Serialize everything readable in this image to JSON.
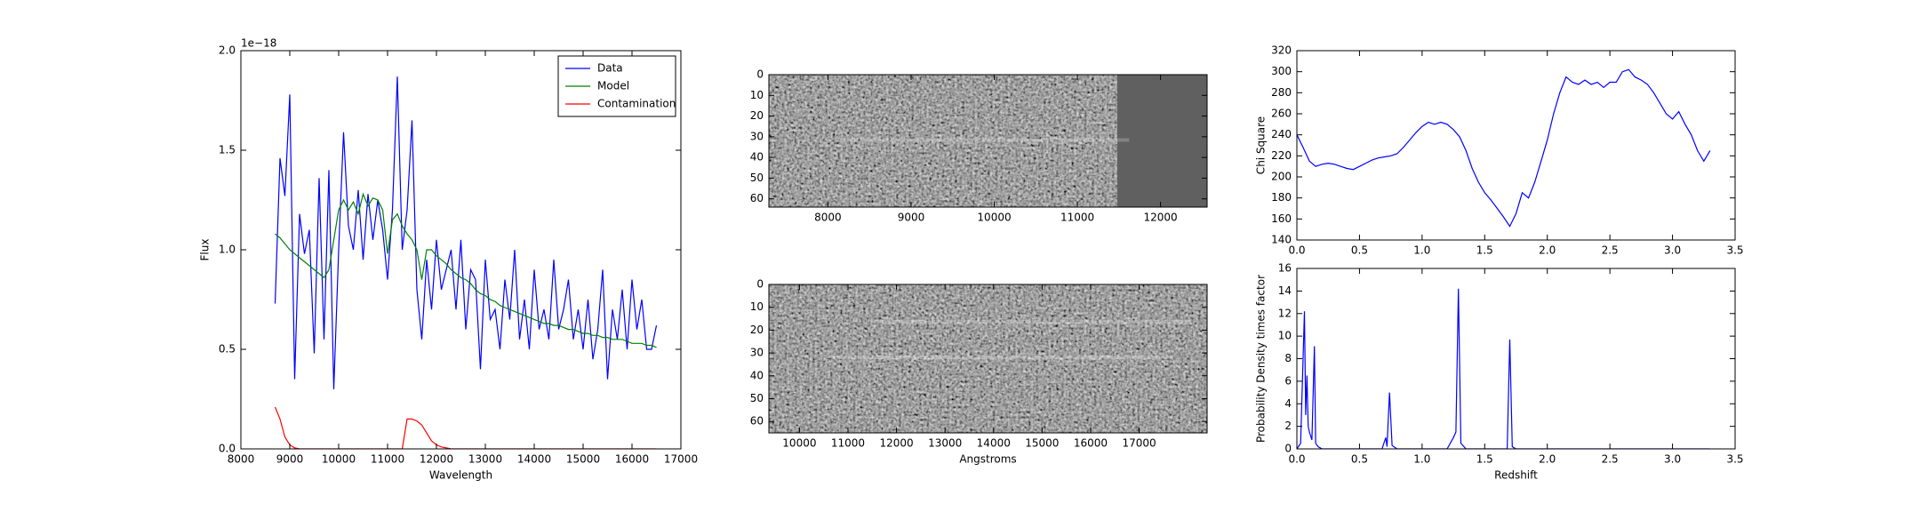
{
  "chart_data": [
    {
      "type": "line",
      "offset_label": "1e−18",
      "xlabel": "Wavelength",
      "ylabel": "Flux",
      "xlim": [
        8000,
        17000
      ],
      "ylim": [
        0,
        2.0
      ],
      "xticks": [
        8000,
        9000,
        10000,
        11000,
        12000,
        13000,
        14000,
        15000,
        16000,
        17000
      ],
      "yticks": [
        {
          "value": 0,
          "label": "0.0"
        },
        0.5,
        {
          "value": 1,
          "label": "1.0"
        },
        1.5,
        {
          "value": 2,
          "label": "2.0"
        }
      ],
      "legend": "upper right",
      "x": [
        8700,
        8800,
        8900,
        9000,
        9100,
        9200,
        9300,
        9400,
        9500,
        9600,
        9700,
        9800,
        9900,
        10000,
        10100,
        10200,
        10300,
        10400,
        10500,
        10600,
        10700,
        10800,
        10900,
        11000,
        11100,
        11200,
        11300,
        11400,
        11500,
        11600,
        11700,
        11800,
        11900,
        12000,
        12100,
        12200,
        12300,
        12400,
        12500,
        12600,
        12700,
        12800,
        12900,
        13000,
        13100,
        13200,
        13300,
        13400,
        13500,
        13600,
        13700,
        13800,
        13900,
        14000,
        14100,
        14200,
        14300,
        14400,
        14500,
        14600,
        14700,
        14800,
        14900,
        15000,
        15100,
        15200,
        15300,
        15400,
        15500,
        15600,
        15700,
        15800,
        15900,
        16000,
        16100,
        16200,
        16300,
        16400,
        16500
      ],
      "series": [
        {
          "name": "Data",
          "color": "#0000ff",
          "values": [
            0.73,
            1.46,
            1.27,
            1.78,
            0.35,
            1.18,
            0.98,
            1.1,
            0.48,
            1.36,
            0.55,
            1.4,
            0.3,
            1.0,
            1.59,
            1.12,
            1.0,
            1.3,
            0.95,
            1.28,
            1.05,
            1.25,
            1.1,
            0.85,
            1.2,
            1.87,
            1.0,
            1.2,
            1.65,
            0.8,
            0.55,
            0.95,
            0.7,
            1.05,
            0.8,
            0.9,
            1.0,
            0.7,
            1.05,
            0.6,
            0.9,
            0.85,
            0.4,
            0.95,
            0.65,
            0.7,
            0.5,
            0.85,
            0.65,
            1.0,
            0.55,
            0.75,
            0.5,
            0.9,
            0.6,
            0.7,
            0.55,
            0.95,
            0.6,
            0.7,
            0.85,
            0.55,
            0.7,
            0.5,
            0.75,
            0.45,
            0.6,
            0.9,
            0.35,
            0.7,
            0.55,
            0.8,
            0.5,
            0.85,
            0.6,
            0.75,
            0.5,
            0.5,
            0.62
          ]
        },
        {
          "name": "Model",
          "color": "#008000",
          "values": [
            1.08,
            1.06,
            1.03,
            1.0,
            0.98,
            0.96,
            0.94,
            0.92,
            0.9,
            0.88,
            0.86,
            0.9,
            1.05,
            1.2,
            1.25,
            1.2,
            1.24,
            1.18,
            1.28,
            1.22,
            1.26,
            1.25,
            1.2,
            0.98,
            1.15,
            1.18,
            1.12,
            1.08,
            1.05,
            1.0,
            0.85,
            1.0,
            1.0,
            0.97,
            0.95,
            0.93,
            0.9,
            0.88,
            0.86,
            0.85,
            0.83,
            0.8,
            0.78,
            0.77,
            0.75,
            0.74,
            0.72,
            0.71,
            0.7,
            0.69,
            0.68,
            0.67,
            0.66,
            0.65,
            0.64,
            0.63,
            0.63,
            0.62,
            0.62,
            0.61,
            0.6,
            0.6,
            0.59,
            0.58,
            0.58,
            0.57,
            0.57,
            0.56,
            0.56,
            0.55,
            0.55,
            0.55,
            0.54,
            0.53,
            0.53,
            0.53,
            0.52,
            0.52,
            0.51
          ]
        },
        {
          "name": "Contamination",
          "color": "#ff0000",
          "values": [
            0.21,
            0.15,
            0.06,
            0.02,
            0.005,
            0,
            0,
            0,
            0,
            0,
            0,
            0,
            0,
            0,
            0,
            0,
            0,
            0,
            0,
            0,
            0,
            0,
            0,
            0,
            0,
            0,
            0,
            0.15,
            0.15,
            0.14,
            0.12,
            0.08,
            0.04,
            0.02,
            0.01,
            0.005,
            0,
            0,
            0,
            0,
            0,
            0,
            0,
            0,
            0,
            0,
            0,
            0,
            0,
            0,
            0,
            0,
            0,
            0,
            0,
            0,
            0,
            0,
            0,
            0,
            0,
            0,
            0,
            0,
            0,
            0,
            0,
            0,
            0,
            0,
            0,
            0,
            0,
            0,
            0,
            0,
            0,
            0,
            0
          ]
        }
      ]
    },
    {
      "type": "image",
      "xlim": [
        7290,
        12560
      ],
      "ylim": [
        0,
        64
      ],
      "xticks": [
        8000,
        9000,
        10000,
        11000,
        12000
      ],
      "yticks": [
        0,
        10,
        20,
        30,
        40,
        50,
        60
      ]
    },
    {
      "type": "image",
      "xlabel": "Angstroms",
      "xlim": [
        9370,
        18400
      ],
      "ylim": [
        0,
        65
      ],
      "xticks": [
        10000,
        11000,
        12000,
        13000,
        14000,
        15000,
        16000,
        17000
      ],
      "yticks": [
        0,
        10,
        20,
        30,
        40,
        50,
        60
      ]
    },
    {
      "type": "line",
      "ylabel": "Chi Square",
      "xlim": [
        0,
        3.5
      ],
      "ylim": [
        140,
        320
      ],
      "xticks": [
        {
          "value": 0,
          "label": "0.0"
        },
        0.5,
        {
          "value": 1,
          "label": "1.0"
        },
        1.5,
        {
          "value": 2,
          "label": "2.0"
        },
        2.5,
        {
          "value": 3,
          "label": "3.0"
        },
        3.5
      ],
      "yticks": [
        140,
        160,
        180,
        200,
        220,
        240,
        260,
        280,
        300,
        320
      ],
      "x": [
        0,
        0.05,
        0.1,
        0.15,
        0.2,
        0.25,
        0.3,
        0.35,
        0.4,
        0.45,
        0.5,
        0.55,
        0.6,
        0.65,
        0.7,
        0.75,
        0.8,
        0.85,
        0.9,
        0.95,
        1.0,
        1.05,
        1.1,
        1.15,
        1.2,
        1.25,
        1.3,
        1.35,
        1.4,
        1.45,
        1.5,
        1.55,
        1.6,
        1.65,
        1.7,
        1.75,
        1.8,
        1.85,
        1.9,
        1.95,
        2.0,
        2.05,
        2.1,
        2.15,
        2.2,
        2.25,
        2.3,
        2.35,
        2.4,
        2.45,
        2.5,
        2.55,
        2.6,
        2.65,
        2.7,
        2.75,
        2.8,
        2.85,
        2.9,
        2.95,
        3.0,
        3.05,
        3.1,
        3.15,
        3.2,
        3.25,
        3.3
      ],
      "series": [
        {
          "color": "#0000ff",
          "values": [
            240,
            228,
            215,
            210,
            212,
            213,
            212,
            210,
            208,
            207,
            210,
            213,
            216,
            218,
            219,
            220,
            222,
            228,
            235,
            242,
            248,
            252,
            250,
            252,
            250,
            245,
            238,
            225,
            208,
            195,
            185,
            178,
            170,
            162,
            153,
            165,
            185,
            180,
            195,
            215,
            235,
            260,
            280,
            295,
            290,
            288,
            292,
            288,
            290,
            285,
            290,
            290,
            300,
            302,
            295,
            292,
            288,
            280,
            270,
            260,
            255,
            262,
            250,
            240,
            225,
            215,
            225
          ]
        }
      ]
    },
    {
      "type": "line",
      "xlabel": "Redshift",
      "ylabel": "Probability Density times factor",
      "xlim": [
        0,
        3.5
      ],
      "ylim": [
        0,
        16
      ],
      "xticks": [
        {
          "value": 0,
          "label": "0.0"
        },
        0.5,
        {
          "value": 1,
          "label": "1.0"
        },
        1.5,
        {
          "value": 2,
          "label": "2.0"
        },
        2.5,
        {
          "value": 3,
          "label": "3.0"
        },
        3.5
      ],
      "yticks": [
        0,
        2,
        4,
        6,
        8,
        10,
        12,
        14,
        16
      ],
      "x": [
        0,
        0.03,
        0.06,
        0.07,
        0.08,
        0.09,
        0.1,
        0.12,
        0.14,
        0.15,
        0.17,
        0.2,
        0.68,
        0.71,
        0.72,
        0.74,
        0.76,
        0.8,
        1.2,
        1.25,
        1.27,
        1.29,
        1.31,
        1.35,
        1.68,
        1.7,
        1.72,
        1.75,
        3.3
      ],
      "series": [
        {
          "color": "#0000ff",
          "values": [
            0,
            0.5,
            12.2,
            3,
            6.5,
            2,
            1.5,
            0.8,
            9.1,
            0.5,
            0.2,
            0,
            0,
            1,
            0.2,
            5,
            0.3,
            0,
            0,
            1,
            1.5,
            14.2,
            0.5,
            0,
            0,
            9.7,
            0.2,
            0,
            0
          ]
        }
      ]
    }
  ]
}
